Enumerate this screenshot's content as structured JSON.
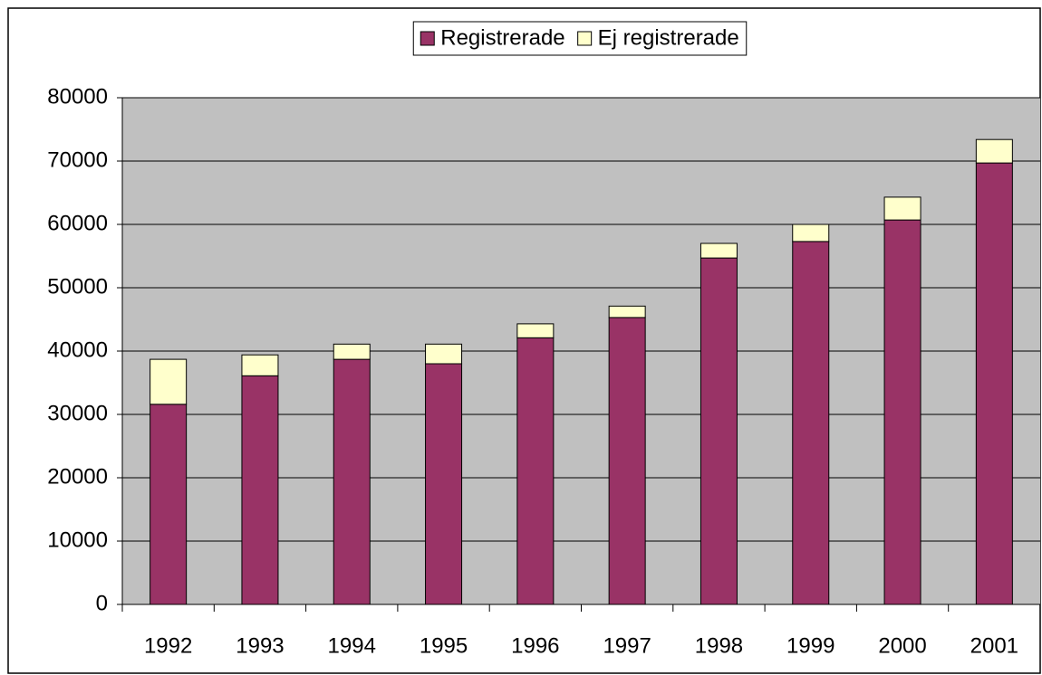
{
  "chart_data": {
    "type": "stacked_bar",
    "categories": [
      "1992",
      "1993",
      "1994",
      "1995",
      "1996",
      "1997",
      "1998",
      "1999",
      "2000",
      "2001"
    ],
    "series": [
      {
        "name": "Registrerade",
        "color": "#993366",
        "values": [
          31600,
          36100,
          38700,
          38000,
          42100,
          45300,
          54700,
          57300,
          60700,
          69700
        ]
      },
      {
        "name": "Ej registrerade",
        "color": "#ffffcc",
        "values": [
          7100,
          3300,
          2400,
          3100,
          2200,
          1800,
          2300,
          2700,
          3600,
          3700
        ]
      }
    ],
    "ylim": [
      0,
      80000
    ],
    "yticks": [
      0,
      10000,
      20000,
      30000,
      40000,
      50000,
      60000,
      70000,
      80000
    ],
    "grid": true,
    "legend": "top",
    "plot_background": "#c0c0c0"
  }
}
